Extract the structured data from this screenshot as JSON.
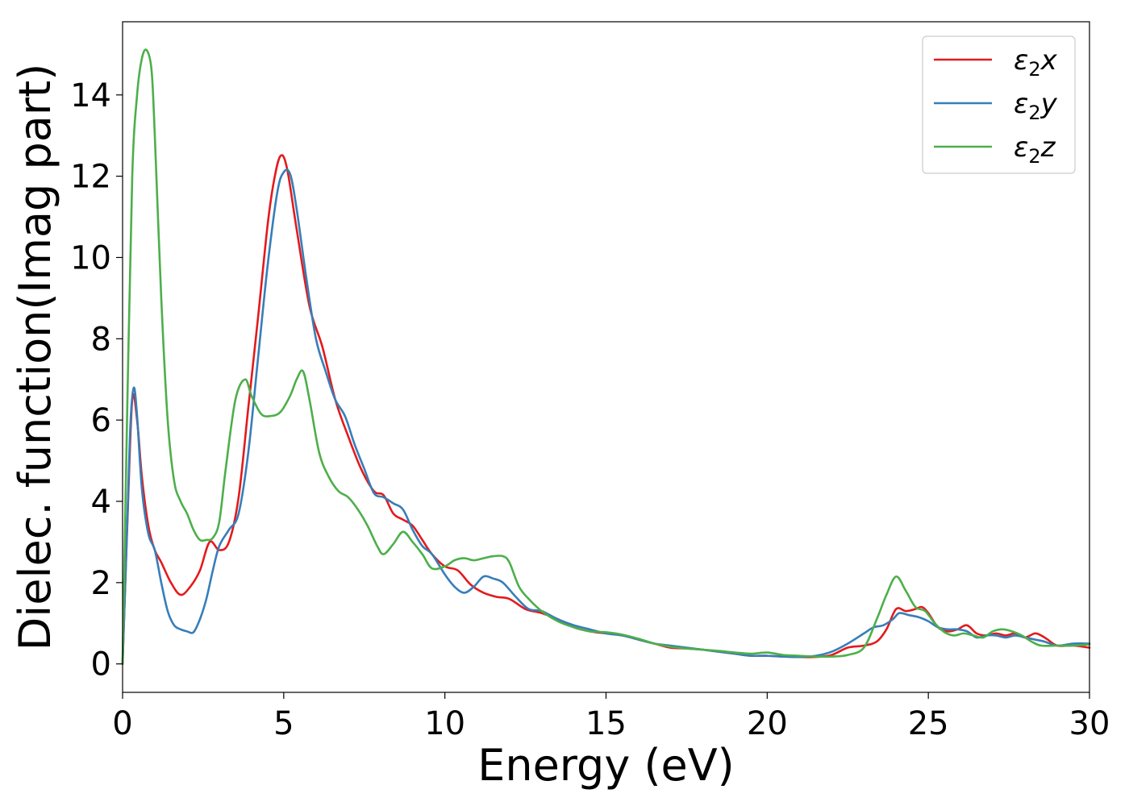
{
  "chart_data": {
    "type": "line",
    "xlabel": "Energy (eV)",
    "ylabel": "Dielec. function(Imag part)",
    "xlim": [
      0,
      30
    ],
    "ylim": [
      -0.7,
      15.8
    ],
    "xticks": [
      0,
      5,
      10,
      15,
      20,
      25,
      30
    ],
    "yticks": [
      0,
      2,
      4,
      6,
      8,
      10,
      12,
      14
    ],
    "grid": false,
    "legend_position": "top-right",
    "series": [
      {
        "name": "ε2x",
        "legend_main": "ε",
        "legend_sub": "2",
        "legend_tail": "x",
        "color": "#e41a1c",
        "x": [
          0,
          0.15,
          0.3,
          0.45,
          0.6,
          0.8,
          1.0,
          1.2,
          1.5,
          1.8,
          2.1,
          2.4,
          2.7,
          3.0,
          3.3,
          3.6,
          3.9,
          4.2,
          4.5,
          4.7,
          4.9,
          5.1,
          5.4,
          5.8,
          6.2,
          6.6,
          7.0,
          7.4,
          7.8,
          8.1,
          8.4,
          8.7,
          9.0,
          9.3,
          9.6,
          10.0,
          10.4,
          10.8,
          11.2,
          11.6,
          12.0,
          12.5,
          13.0,
          13.5,
          14.0,
          14.5,
          15.0,
          15.5,
          16.0,
          16.5,
          17.0,
          17.5,
          18.0,
          18.5,
          19.0,
          19.5,
          20.0,
          20.5,
          21.0,
          21.5,
          22.0,
          22.5,
          23.0,
          23.4,
          23.7,
          24.0,
          24.3,
          24.6,
          24.8,
          25.0,
          25.3,
          25.6,
          25.9,
          26.2,
          26.5,
          26.8,
          27.1,
          27.4,
          27.7,
          28.0,
          28.3,
          28.5,
          28.7,
          29.0,
          29.5,
          30.0
        ],
        "y": [
          0,
          3.5,
          6.5,
          6.0,
          4.6,
          3.4,
          2.8,
          2.5,
          2.0,
          1.7,
          1.9,
          2.3,
          3.0,
          2.8,
          3.0,
          4.1,
          6.3,
          8.5,
          10.8,
          11.9,
          12.5,
          12.2,
          10.7,
          8.8,
          7.8,
          6.5,
          5.6,
          4.8,
          4.25,
          4.15,
          3.7,
          3.55,
          3.4,
          3.05,
          2.7,
          2.4,
          2.3,
          1.95,
          1.75,
          1.65,
          1.6,
          1.35,
          1.25,
          1.1,
          0.9,
          0.8,
          0.75,
          0.7,
          0.6,
          0.5,
          0.4,
          0.38,
          0.35,
          0.3,
          0.25,
          0.2,
          0.2,
          0.18,
          0.17,
          0.17,
          0.22,
          0.4,
          0.45,
          0.55,
          0.85,
          1.35,
          1.3,
          1.35,
          1.4,
          1.25,
          0.9,
          0.8,
          0.85,
          0.95,
          0.75,
          0.7,
          0.75,
          0.7,
          0.75,
          0.65,
          0.75,
          0.7,
          0.6,
          0.45,
          0.45,
          0.4
        ]
      },
      {
        "name": "ε2y",
        "legend_main": "ε",
        "legend_sub": "2",
        "legend_tail": "y",
        "color": "#377eb8",
        "x": [
          0,
          0.15,
          0.25,
          0.35,
          0.45,
          0.6,
          0.8,
          1.0,
          1.2,
          1.4,
          1.6,
          1.8,
          2.0,
          2.2,
          2.4,
          2.6,
          2.8,
          3.0,
          3.3,
          3.6,
          3.9,
          4.2,
          4.5,
          4.8,
          5.0,
          5.2,
          5.4,
          5.7,
          6.0,
          6.3,
          6.6,
          6.9,
          7.2,
          7.5,
          7.8,
          8.1,
          8.4,
          8.7,
          9.0,
          9.3,
          9.6,
          10.0,
          10.3,
          10.6,
          10.9,
          11.2,
          11.5,
          11.8,
          12.2,
          12.6,
          13.0,
          13.5,
          14.0,
          14.5,
          15.0,
          15.5,
          16.0,
          16.5,
          17.0,
          17.5,
          18.0,
          18.5,
          19.0,
          19.5,
          20.0,
          20.5,
          21.0,
          21.5,
          22.0,
          22.5,
          23.0,
          23.3,
          23.6,
          23.9,
          24.1,
          24.4,
          24.7,
          25.0,
          25.3,
          25.6,
          25.9,
          26.2,
          26.5,
          26.8,
          27.1,
          27.4,
          27.7,
          28.0,
          28.3,
          28.6,
          29.0,
          29.5,
          30.0
        ],
        "y": [
          0,
          3.6,
          6.0,
          6.8,
          6.1,
          4.3,
          3.2,
          2.8,
          2.0,
          1.3,
          0.95,
          0.85,
          0.8,
          0.78,
          1.1,
          1.6,
          2.3,
          2.9,
          3.3,
          3.7,
          5.2,
          7.5,
          9.8,
          11.6,
          12.1,
          12.05,
          11.2,
          9.5,
          8.0,
          7.2,
          6.5,
          6.1,
          5.4,
          4.8,
          4.2,
          4.1,
          3.95,
          3.8,
          3.3,
          2.9,
          2.7,
          2.2,
          1.9,
          1.75,
          1.9,
          2.15,
          2.1,
          2.0,
          1.65,
          1.35,
          1.3,
          1.1,
          0.95,
          0.85,
          0.75,
          0.7,
          0.6,
          0.5,
          0.45,
          0.4,
          0.35,
          0.3,
          0.25,
          0.2,
          0.2,
          0.18,
          0.17,
          0.2,
          0.3,
          0.5,
          0.75,
          0.9,
          0.95,
          1.1,
          1.25,
          1.2,
          1.15,
          1.05,
          0.9,
          0.85,
          0.85,
          0.8,
          0.65,
          0.7,
          0.7,
          0.65,
          0.7,
          0.65,
          0.6,
          0.55,
          0.45,
          0.5,
          0.5
        ]
      },
      {
        "name": "ε2z",
        "legend_main": "ε",
        "legend_sub": "2",
        "legend_tail": "z",
        "color": "#4daf4a",
        "x": [
          0,
          0.15,
          0.3,
          0.45,
          0.6,
          0.75,
          0.9,
          1.0,
          1.2,
          1.4,
          1.6,
          1.8,
          2.0,
          2.2,
          2.4,
          2.6,
          2.8,
          3.0,
          3.2,
          3.5,
          3.8,
          4.0,
          4.3,
          4.6,
          4.9,
          5.2,
          5.4,
          5.6,
          5.8,
          6.1,
          6.4,
          6.7,
          7.0,
          7.3,
          7.6,
          7.9,
          8.1,
          8.4,
          8.7,
          9.0,
          9.3,
          9.6,
          10.0,
          10.3,
          10.6,
          10.9,
          11.2,
          11.5,
          11.8,
          12.0,
          12.3,
          12.6,
          13.0,
          13.5,
          14.0,
          14.5,
          15.0,
          15.5,
          16.0,
          16.5,
          17.0,
          17.5,
          18.0,
          18.5,
          19.0,
          19.5,
          20.0,
          20.5,
          21.0,
          21.5,
          22.0,
          22.5,
          23.0,
          23.4,
          23.7,
          24.0,
          24.3,
          24.6,
          24.9,
          25.2,
          25.5,
          25.8,
          26.1,
          26.4,
          26.7,
          27.0,
          27.3,
          27.6,
          27.9,
          28.2,
          28.5,
          29.0,
          29.5,
          30.0
        ],
        "y": [
          0,
          6.5,
          12.0,
          14.0,
          14.9,
          15.1,
          14.6,
          13.0,
          9.0,
          6.0,
          4.5,
          4.0,
          3.7,
          3.3,
          3.05,
          3.05,
          3.1,
          3.5,
          4.8,
          6.5,
          7.0,
          6.6,
          6.15,
          6.1,
          6.2,
          6.6,
          7.0,
          7.2,
          6.5,
          5.2,
          4.6,
          4.25,
          4.1,
          3.8,
          3.4,
          2.9,
          2.7,
          2.95,
          3.25,
          3.0,
          2.7,
          2.35,
          2.4,
          2.55,
          2.6,
          2.55,
          2.6,
          2.65,
          2.65,
          2.5,
          1.9,
          1.6,
          1.3,
          1.05,
          0.9,
          0.8,
          0.78,
          0.72,
          0.62,
          0.5,
          0.42,
          0.38,
          0.35,
          0.32,
          0.28,
          0.25,
          0.28,
          0.22,
          0.2,
          0.18,
          0.18,
          0.22,
          0.4,
          1.1,
          1.7,
          2.15,
          1.8,
          1.4,
          1.3,
          1.0,
          0.78,
          0.7,
          0.75,
          0.7,
          0.65,
          0.8,
          0.85,
          0.8,
          0.7,
          0.55,
          0.45,
          0.45,
          0.45,
          0.48
        ]
      }
    ]
  }
}
